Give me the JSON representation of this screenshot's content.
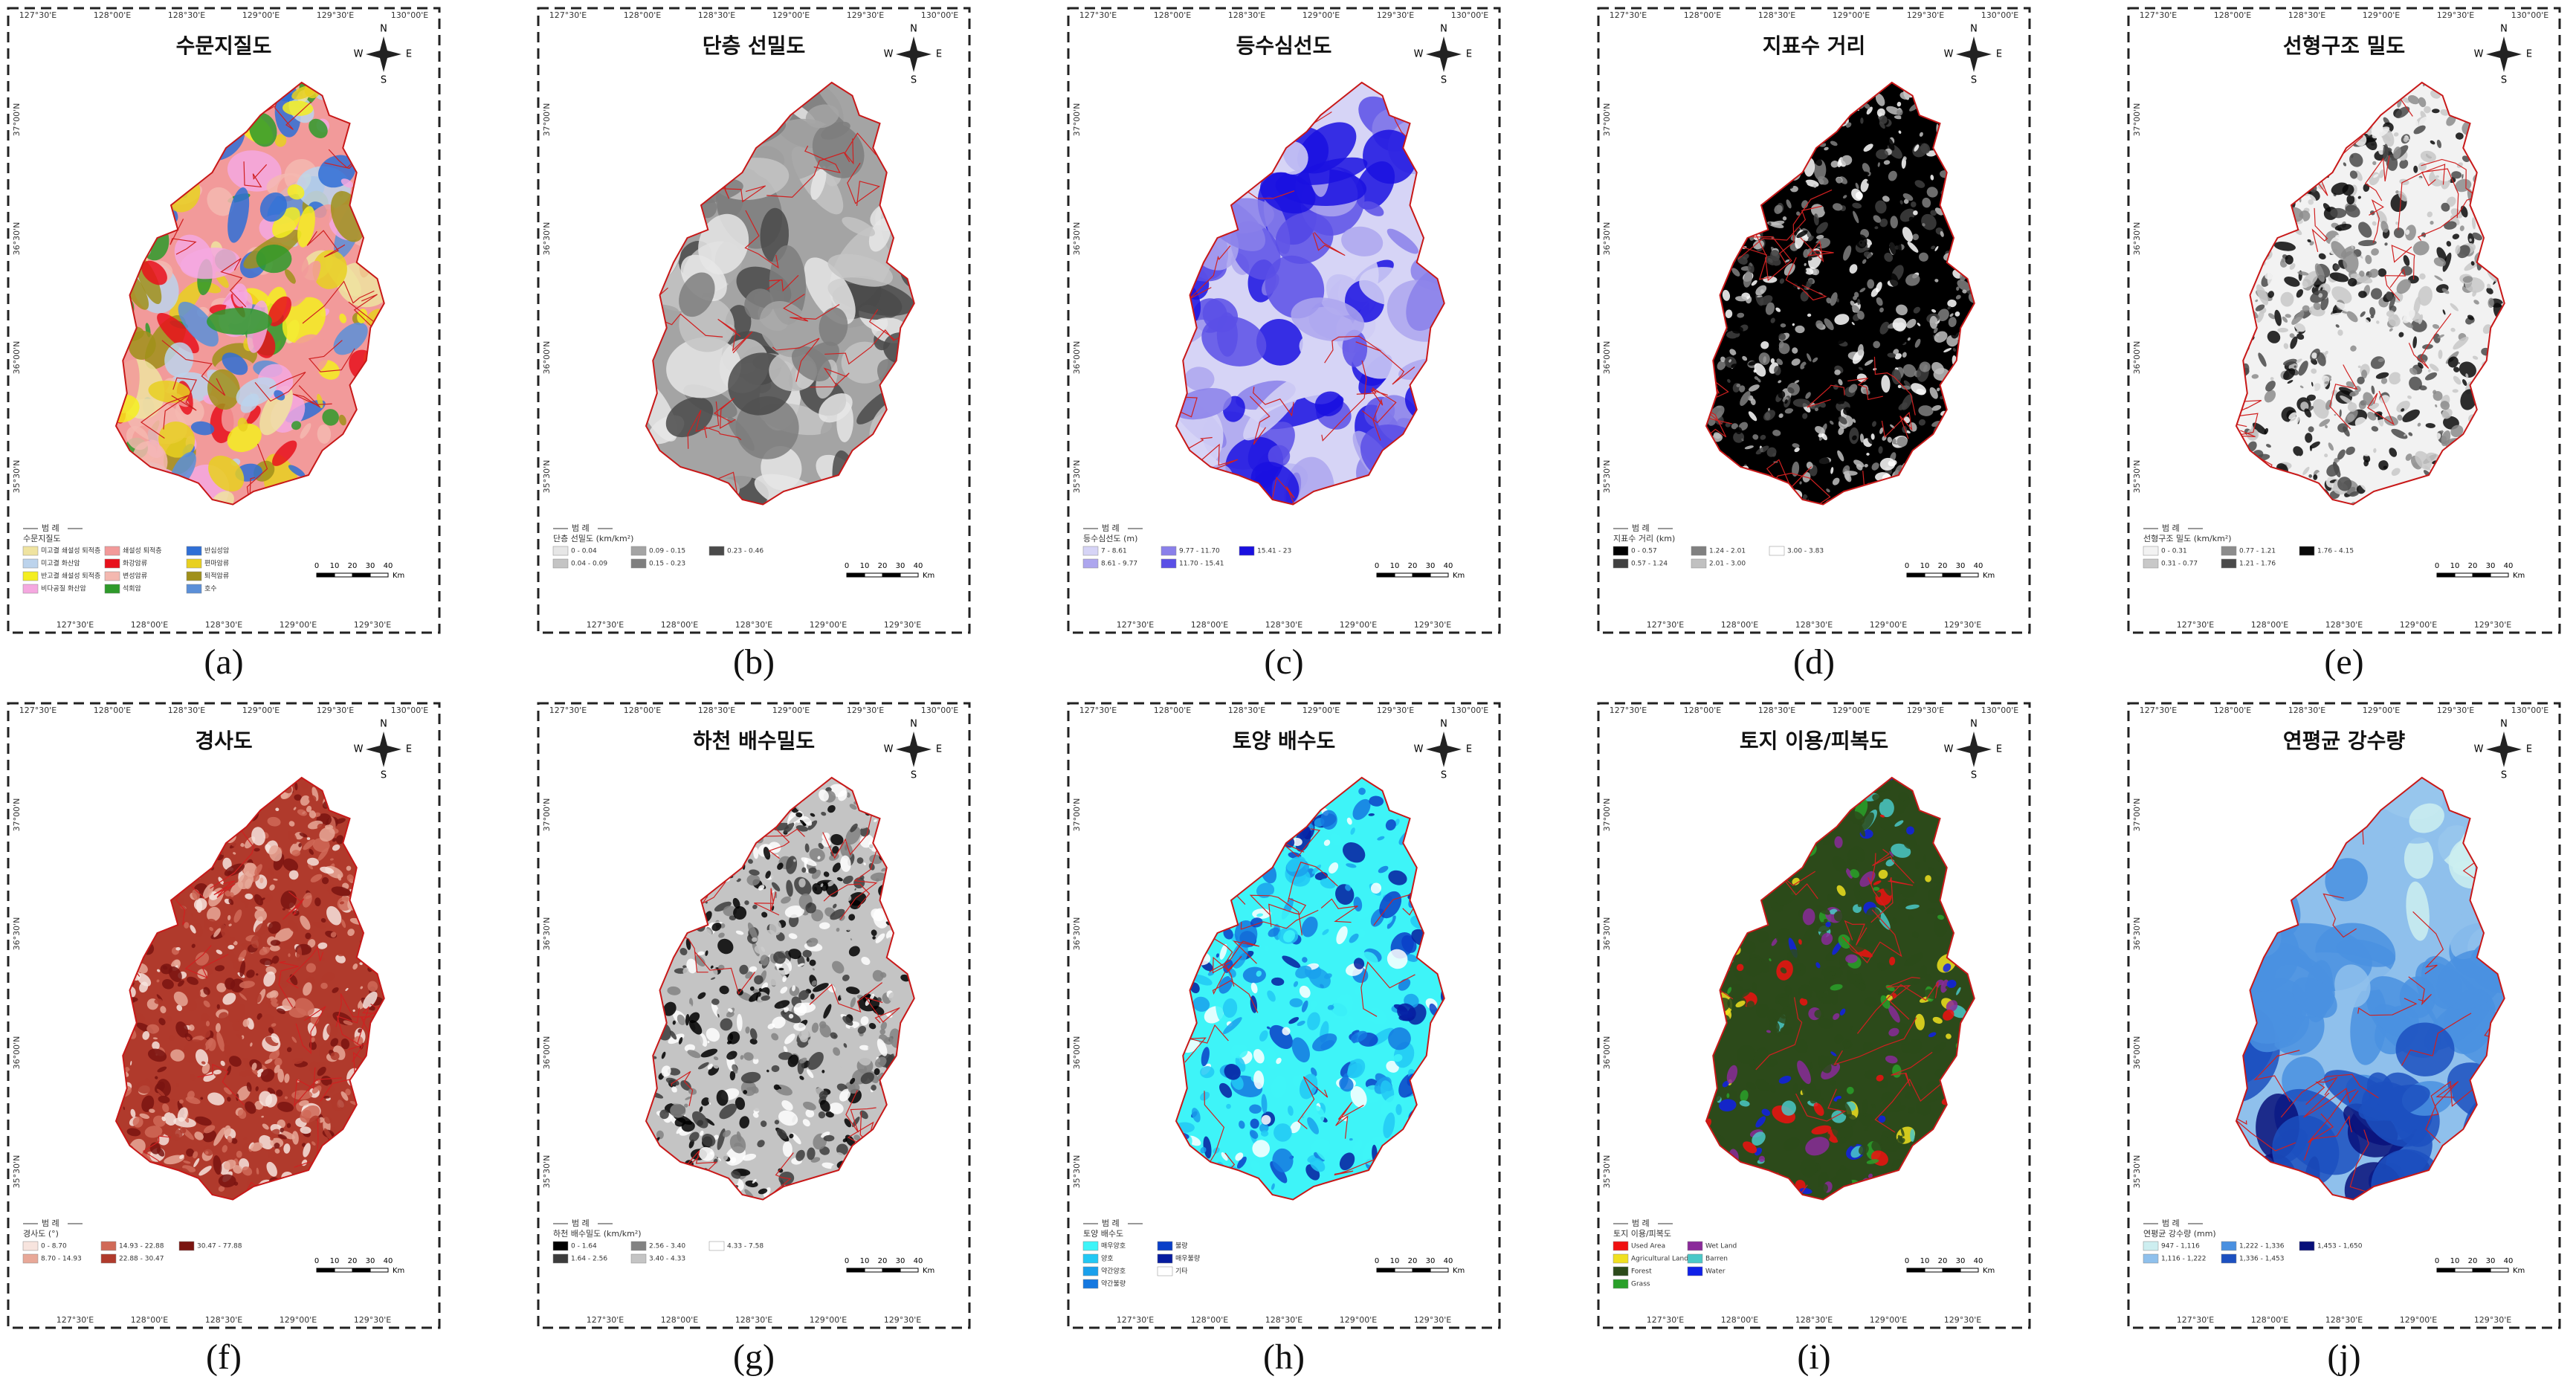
{
  "legend_heading": "범 례",
  "top_lon_labels": [
    "127°30'E",
    "128°00'E",
    "128°30'E",
    "129°00'E",
    "129°30'E",
    "130°00'E"
  ],
  "bottom_lon_labels": [
    "127°30'E",
    "128°00'E",
    "128°30'E",
    "129°00'E",
    "129°30'E"
  ],
  "lat_labels": [
    "37°00'N",
    "36°30'N",
    "36°00'N",
    "35°30'N"
  ],
  "compass": {
    "n": "N",
    "s": "S",
    "e": "E",
    "w": "W"
  },
  "scale_ticks": [
    0,
    10,
    20,
    30,
    40
  ],
  "scale_unit": "Km",
  "panels": [
    {
      "caption": "(a)",
      "title": "수문지질도",
      "legend_title": "수문지질도",
      "legend": [
        {
          "label": "미고결 쇄설성 퇴적층",
          "color": "#efe3a0"
        },
        {
          "label": "미고결 화산암",
          "color": "#bcd3ec"
        },
        {
          "label": "반고결 쇄설성 퇴적층",
          "color": "#f4ee20"
        },
        {
          "label": "비다공질 화산암",
          "color": "#f5a8e0"
        },
        {
          "label": "쇄설성 퇴적층",
          "color": "#f29a9a"
        },
        {
          "label": "화강암류",
          "color": "#e8101c"
        },
        {
          "label": "변성암류",
          "color": "#f4b8b0"
        },
        {
          "label": "석회암",
          "color": "#2e9a2a"
        },
        {
          "label": "반심성암",
          "color": "#2f6fd6"
        },
        {
          "label": "편마암류",
          "color": "#e8d020"
        },
        {
          "label": "퇴적암류",
          "color": "#a0901a"
        },
        {
          "label": "호수",
          "color": "#5b8fd8"
        }
      ]
    },
    {
      "caption": "(b)",
      "title": "단층 선밀도",
      "legend_title": "단층 선밀도 (km/km²)",
      "legend": [
        {
          "label": "0 - 0.04",
          "color": "#e6e6e6"
        },
        {
          "label": "0.04 - 0.09",
          "color": "#c4c4c4"
        },
        {
          "label": "0.09 - 0.15",
          "color": "#a4a4a4"
        },
        {
          "label": "0.15 - 0.23",
          "color": "#7e7e7e"
        },
        {
          "label": "0.23 - 0.46",
          "color": "#4a4a4a"
        }
      ]
    },
    {
      "caption": "(c)",
      "title": "등수심선도",
      "legend_title": "등수심선도 (m)",
      "legend": [
        {
          "label": "7 - 8.61",
          "color": "#d6d4f6"
        },
        {
          "label": "8.61 - 9.77",
          "color": "#ada6ee"
        },
        {
          "label": "9.77 - 11.70",
          "color": "#8a80ea"
        },
        {
          "label": "11.70 - 15.41",
          "color": "#5a4fe6"
        },
        {
          "label": "15.41 - 23",
          "color": "#1a10e0"
        }
      ]
    },
    {
      "caption": "(d)",
      "title": "지표수 거리",
      "legend_title": "지표수 거리 (km)",
      "legend": [
        {
          "label": "0 - 0.57",
          "color": "#000000"
        },
        {
          "label": "0.57 - 1.24",
          "color": "#404040"
        },
        {
          "label": "1.24 - 2.01",
          "color": "#808080"
        },
        {
          "label": "2.01 - 3.00",
          "color": "#c0c0c0"
        },
        {
          "label": "3.00 - 3.83",
          "color": "#ffffff"
        }
      ]
    },
    {
      "caption": "(e)",
      "title": "선형구조 밀도",
      "legend_title": "선형구조 밀도 (km/km²)",
      "legend": [
        {
          "label": "0 - 0.31",
          "color": "#f2f2f2"
        },
        {
          "label": "0.31 - 0.77",
          "color": "#c8c8c8"
        },
        {
          "label": "0.77 - 1.21",
          "color": "#8c8c8c"
        },
        {
          "label": "1.21 - 1.76",
          "color": "#4a4a4a"
        },
        {
          "label": "1.76 - 4.15",
          "color": "#0a0a0a"
        }
      ]
    },
    {
      "caption": "(f)",
      "title": "경사도",
      "legend_title": "경사도 (°)",
      "legend": [
        {
          "label": "0 - 8.70",
          "color": "#f7e4de"
        },
        {
          "label": "8.70 - 14.93",
          "color": "#e8a898"
        },
        {
          "label": "14.93 - 22.88",
          "color": "#d06a58"
        },
        {
          "label": "22.88 - 30.47",
          "color": "#b03a2c"
        },
        {
          "label": "30.47 - 77.88",
          "color": "#7a1410"
        }
      ]
    },
    {
      "caption": "(g)",
      "title": "하천 배수밀도",
      "legend_title": "하천 배수밀도 (km/km²)",
      "legend": [
        {
          "label": "0 - 1.64",
          "color": "#000000"
        },
        {
          "label": "1.64 - 2.56",
          "color": "#3c3c3c"
        },
        {
          "label": "2.56 - 3.40",
          "color": "#828282"
        },
        {
          "label": "3.40 - 4.33",
          "color": "#c4c4c4"
        },
        {
          "label": "4.33 - 7.58",
          "color": "#ffffff"
        }
      ]
    },
    {
      "caption": "(h)",
      "title": "토양 배수도",
      "legend_title": "토양 배수도",
      "legend": [
        {
          "label": "매우양호",
          "color": "#3ef4f8"
        },
        {
          "label": "양호",
          "color": "#22c8f4"
        },
        {
          "label": "약간양호",
          "color": "#1aa0ec"
        },
        {
          "label": "약간불량",
          "color": "#1478e0"
        },
        {
          "label": "불량",
          "color": "#0a40c8"
        },
        {
          "label": "매우불량",
          "color": "#061ca0"
        },
        {
          "label": "기타",
          "color": "#ffffff"
        }
      ]
    },
    {
      "caption": "(i)",
      "title": "토지 이용/피복도",
      "legend_title": "토지 이용/피복도",
      "legend": [
        {
          "label": "Used Area",
          "color": "#f01010"
        },
        {
          "label": "Agricultural Land",
          "color": "#f0e020"
        },
        {
          "label": "Forest",
          "color": "#2c4a1a"
        },
        {
          "label": "Grass",
          "color": "#2aa02a"
        },
        {
          "label": "Wet Land",
          "color": "#8a2a9a"
        },
        {
          "label": "Barren",
          "color": "#4ac8c8"
        },
        {
          "label": "Water",
          "color": "#1020e8"
        }
      ]
    },
    {
      "caption": "(j)",
      "title": "연평균 강수량",
      "legend_title": "연평균 강수량 (mm)",
      "legend": [
        {
          "label": "947 - 1,116",
          "color": "#cdeef0"
        },
        {
          "label": "1,116 - 1,222",
          "color": "#8fc0ec"
        },
        {
          "label": "1,222 - 1,336",
          "color": "#4a90e0"
        },
        {
          "label": "1,336 - 1,453",
          "color": "#1c50c0"
        },
        {
          "label": "1,453 - 1,650",
          "color": "#08107a"
        }
      ]
    }
  ]
}
